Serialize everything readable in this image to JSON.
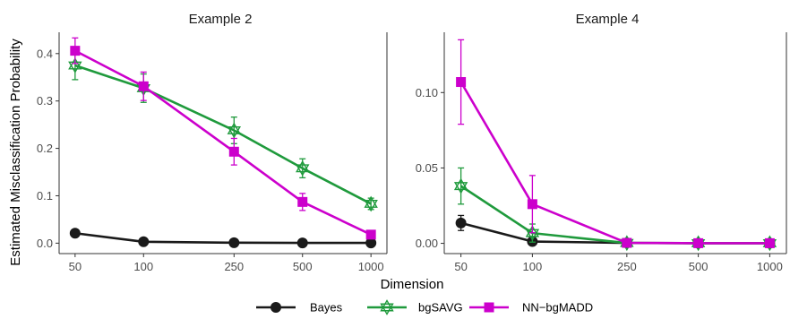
{
  "colors": {
    "Bayes": "#1a1a1a",
    "bgSAVG": "#1f9a3c",
    "NN-bgMADD": "#cc00cc"
  },
  "markers": {
    "Bayes": "circle",
    "bgSAVG": "star-of-david",
    "NN-bgMADD": "square"
  },
  "chart_data": {
    "type": "line",
    "xlabel": "Dimension",
    "ylabel": "Estimated Misclassification Probability",
    "x_scale": "log",
    "x": [
      50,
      100,
      250,
      500,
      1000
    ],
    "x_tick_labels": [
      "50",
      "100",
      "250",
      "500",
      "1000"
    ],
    "legend": {
      "position": "bottom",
      "entries": [
        "Bayes",
        "bgSAVG",
        "NN−bgMADD"
      ]
    },
    "panels": [
      {
        "title": "Example 2",
        "ylim": [
          -0.022,
          0.445
        ],
        "yticks": [
          0.0,
          0.1,
          0.2,
          0.3,
          0.4
        ],
        "ytick_labels": [
          "0.0",
          "0.1",
          "0.2",
          "0.3",
          "0.4"
        ],
        "series": [
          {
            "name": "Bayes",
            "values": [
              0.021,
              0.003,
              0.001,
              0.0005,
              0.0005
            ],
            "err": [
              0.003,
              0.002,
              0.001,
              0.001,
              0.001
            ]
          },
          {
            "name": "bgSAVG",
            "values": [
              0.375,
              0.327,
              0.238,
              0.158,
              0.083
            ],
            "err": [
              0.03,
              0.03,
              0.028,
              0.02,
              0.012
            ]
          },
          {
            "name": "NN−bgMADD",
            "values": [
              0.406,
              0.331,
              0.193,
              0.087,
              0.018
            ],
            "err": [
              0.027,
              0.03,
              0.028,
              0.018,
              0.006
            ]
          }
        ]
      },
      {
        "title": "Example 4",
        "ylim": [
          -0.0068,
          0.14
        ],
        "yticks": [
          0.0,
          0.05,
          0.1
        ],
        "ytick_labels": [
          "0.00",
          "0.05",
          "0.10"
        ],
        "series": [
          {
            "name": "Bayes",
            "values": [
              0.0135,
              0.0012,
              0.0003,
              0.0001,
              0.0001
            ],
            "err": [
              0.005,
              0.001,
              0.0005,
              0.0004,
              0.0004
            ]
          },
          {
            "name": "bgSAVG",
            "values": [
              0.038,
              0.0068,
              0.0002,
              0.0001,
              0.0001
            ],
            "err": [
              0.012,
              0.006,
              0.002,
              0.0015,
              0.0015
            ]
          },
          {
            "name": "NN−bgMADD",
            "values": [
              0.107,
              0.026,
              0.0003,
              0.0001,
              0.0001
            ],
            "err": [
              0.028,
              0.019,
              0.002,
              0.0015,
              0.0015
            ]
          }
        ]
      }
    ]
  }
}
